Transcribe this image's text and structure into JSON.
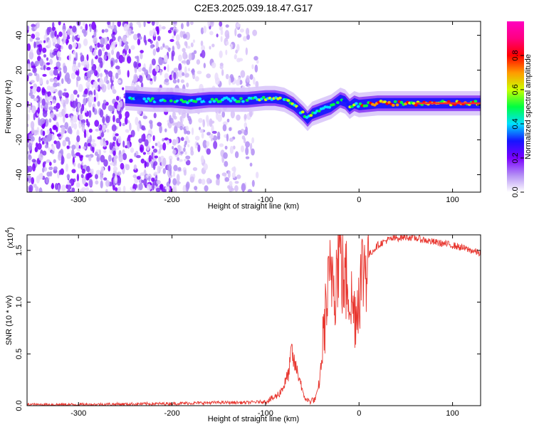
{
  "title": "C2E3.2025.039.18.47.G17",
  "chart_data": [
    {
      "type": "heatmap",
      "name": "spectrogram",
      "xlabel": "Height of straight line (km)",
      "ylabel": "Frequency (Hz)",
      "xlim": [
        -355,
        130
      ],
      "ylim": [
        -50,
        48
      ],
      "xticks": [
        -300,
        -200,
        -100,
        0,
        100
      ],
      "xtick_labels": [
        "-300",
        "-200",
        "-100",
        "0",
        "100"
      ],
      "yticks": [
        -40,
        -20,
        0,
        20,
        40
      ],
      "ytick_labels": [
        "-40",
        "-20",
        "0",
        "20",
        "40"
      ],
      "ridge": {
        "x": [
          -250,
          -220,
          -200,
          -180,
          -160,
          -140,
          -120,
          -100,
          -90,
          -80,
          -70,
          -60,
          -55,
          -50,
          -40,
          -30,
          -20,
          -15,
          -10,
          -5,
          0,
          20,
          50,
          80,
          100,
          130
        ],
        "y": [
          4,
          3,
          3,
          2,
          3,
          3,
          3,
          4,
          4,
          3,
          0,
          -5,
          -8,
          -5,
          -3,
          -1,
          3,
          2,
          -1,
          1,
          0,
          1,
          1,
          1,
          1,
          1
        ]
      },
      "colorbar": {
        "label": "Normalized spectral amplitude",
        "range": [
          0,
          1
        ],
        "ticks": [
          0.0,
          0.2,
          0.4,
          0.6,
          0.8
        ],
        "tick_labels": [
          "0.0",
          "0.2",
          "0.4",
          "0.6",
          "0.8"
        ],
        "colors": [
          "#ffffff",
          "#b38ef5",
          "#7a00ff",
          "#1515ff",
          "#00e0ff",
          "#00ff40",
          "#ccff00",
          "#ff9900",
          "#ff0000",
          "#ff0080",
          "#ff00c0"
        ]
      }
    },
    {
      "type": "line",
      "name": "snr",
      "xlabel": "Height of straight line (km)",
      "ylabel": "SNR (10 * v/v)",
      "y_multiplier": "(x10",
      "y_multiplier_exp": "4",
      "y_multiplier_close": ")",
      "xlim": [
        -355,
        130
      ],
      "ylim": [
        0,
        1.65
      ],
      "xticks": [
        -300,
        -200,
        -100,
        0,
        100
      ],
      "xtick_labels": [
        "-300",
        "-200",
        "-100",
        "0",
        "100"
      ],
      "yticks": [
        0.0,
        0.5,
        1.0,
        1.5
      ],
      "ytick_labels": [
        "0.0",
        "0.5",
        "1.0",
        "1.5"
      ],
      "line_color": "#e8362f",
      "x": [
        -355,
        -300,
        -250,
        -200,
        -150,
        -120,
        -100,
        -95,
        -90,
        -85,
        -80,
        -75,
        -72,
        -70,
        -68,
        -65,
        -62,
        -60,
        -57,
        -55,
        -52,
        -50,
        -48,
        -45,
        -42,
        -40,
        -38,
        -35,
        -32,
        -30,
        -28,
        -25,
        -22,
        -20,
        -18,
        -15,
        -12,
        -10,
        -8,
        -5,
        -2,
        0,
        5,
        10,
        20,
        30,
        40,
        50,
        60,
        80,
        100,
        120,
        130
      ],
      "y": [
        0.01,
        0.01,
        0.015,
        0.02,
        0.03,
        0.03,
        0.04,
        0.06,
        0.08,
        0.12,
        0.2,
        0.32,
        0.55,
        0.42,
        0.38,
        0.3,
        0.22,
        0.1,
        0.07,
        0.05,
        0.04,
        0.06,
        0.05,
        0.1,
        0.25,
        0.45,
        0.7,
        0.95,
        1.15,
        1.25,
        1.35,
        1.2,
        1.5,
        1.65,
        1.3,
        1.15,
        1.25,
        1.1,
        1.0,
        0.9,
        0.95,
        1.15,
        1.35,
        1.45,
        1.55,
        1.6,
        1.62,
        1.63,
        1.62,
        1.58,
        1.55,
        1.5,
        1.47
      ]
    }
  ]
}
